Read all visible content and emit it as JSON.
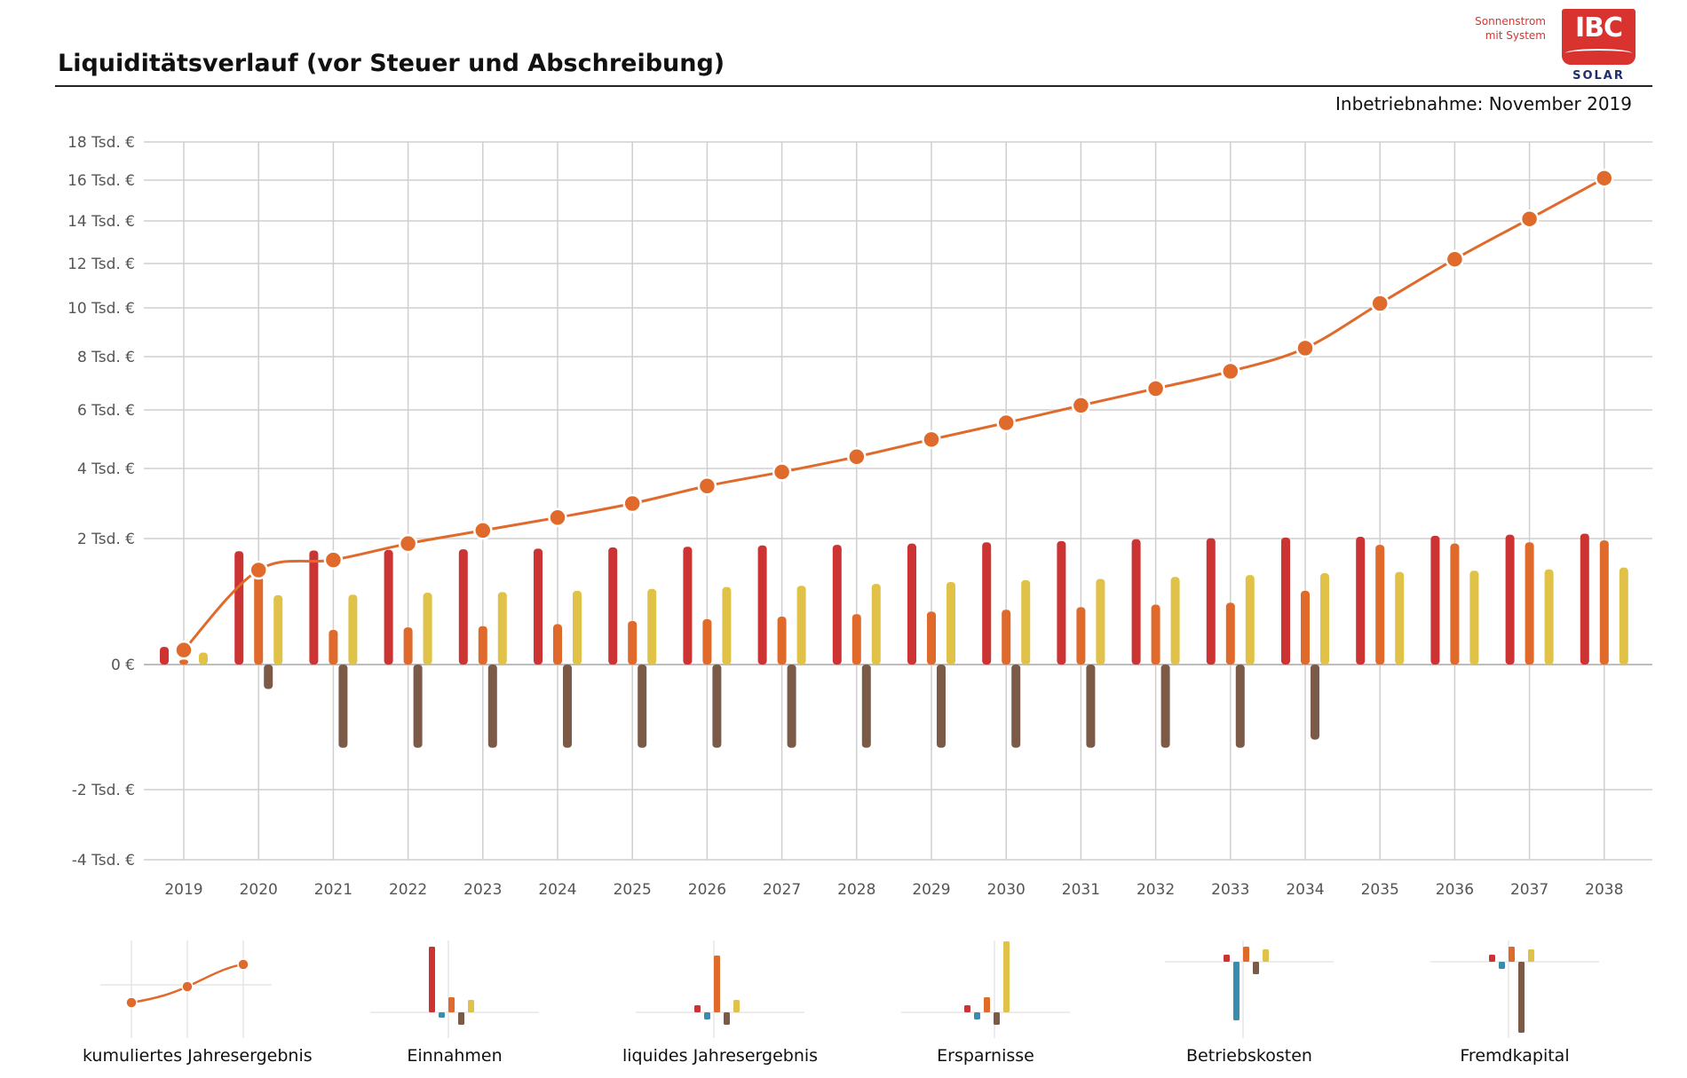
{
  "header": {
    "title": "Liquiditätsverlauf (vor Steuer und Abschreibung)",
    "commissioning": "Inbetriebnahme: November 2019"
  },
  "logo": {
    "tagline_line1": "Sonnenstrom",
    "tagline_line2": "mit System",
    "mark": "IBC",
    "sub": "SOLAR"
  },
  "colors": {
    "kumuliert": "#e06a2b",
    "einnahmen": "#cc3333",
    "liquide": "#e06a2b",
    "ersparnisse": "#e0c248",
    "fremdkapital": "#7b5a48",
    "betriebskosten": "#3a8bb0",
    "grid": "#cfcfcf"
  },
  "chart_data": {
    "type": "bar",
    "categories": [
      "2019",
      "2020",
      "2021",
      "2022",
      "2023",
      "2024",
      "2025",
      "2026",
      "2027",
      "2028",
      "2029",
      "2030",
      "2031",
      "2032",
      "2033",
      "2034",
      "2035",
      "2036",
      "2037",
      "2038"
    ],
    "y_ticks": [
      {
        "value": 18000,
        "label": "18 Tsd. €"
      },
      {
        "value": 16000,
        "label": "16 Tsd. €"
      },
      {
        "value": 14000,
        "label": "14 Tsd. €"
      },
      {
        "value": 12000,
        "label": "12 Tsd. €"
      },
      {
        "value": 10000,
        "label": "10 Tsd. €"
      },
      {
        "value": 8000,
        "label": "8 Tsd. €"
      },
      {
        "value": 6000,
        "label": "6 Tsd. €"
      },
      {
        "value": 4000,
        "label": "4 Tsd. €"
      },
      {
        "value": 2000,
        "label": "2 Tsd. €"
      },
      {
        "value": 0,
        "label": "0 €"
      },
      {
        "value": -2000,
        "label": "-2 Tsd. €"
      },
      {
        "value": -4000,
        "label": "-4 Tsd. €"
      }
    ],
    "ylim": [
      -4000,
      18000
    ],
    "y_scale": "compressed (non-linear)",
    "grid": true,
    "series": [
      {
        "key": "einnahmen",
        "type": "bar",
        "values": [
          280,
          1800,
          1810,
          1820,
          1830,
          1840,
          1860,
          1870,
          1890,
          1900,
          1920,
          1940,
          1960,
          1990,
          2010,
          2030,
          2050,
          2080,
          2110,
          2140
        ]
      },
      {
        "key": "liquide",
        "type": "bar",
        "values": [
          80,
          1400,
          550,
          590,
          610,
          640,
          690,
          720,
          760,
          800,
          840,
          870,
          910,
          950,
          980,
          1170,
          1900,
          1920,
          1940,
          1970
        ]
      },
      {
        "key": "ersparnisse",
        "type": "bar",
        "values": [
          190,
          1100,
          1110,
          1140,
          1150,
          1170,
          1200,
          1230,
          1250,
          1280,
          1310,
          1340,
          1360,
          1390,
          1420,
          1450,
          1470,
          1490,
          1510,
          1540
        ]
      },
      {
        "key": "fremdkapital",
        "type": "bar",
        "values": [
          0,
          -390,
          -1330,
          -1330,
          -1330,
          -1330,
          -1330,
          -1330,
          -1330,
          -1330,
          -1330,
          -1330,
          -1330,
          -1330,
          -1330,
          -1200,
          0,
          0,
          0,
          0
        ]
      },
      {
        "key": "kumuliert",
        "type": "line",
        "values": [
          230,
          1500,
          1660,
          1920,
          2230,
          2600,
          3000,
          3500,
          3900,
          4400,
          4990,
          5560,
          6170,
          6800,
          7450,
          8350,
          10200,
          12200,
          14100,
          16100
        ]
      }
    ]
  },
  "legend": [
    {
      "key": "kumuliert",
      "label": "kumuliertes Jahresergebnis"
    },
    {
      "key": "einnahmen",
      "label": "Einnahmen"
    },
    {
      "key": "liquide",
      "label": "liquides Jahresergebnis"
    },
    {
      "key": "ersparnisse",
      "label": "Ersparnisse"
    },
    {
      "key": "betriebskosten",
      "label": "Betriebskosten"
    },
    {
      "key": "fremdkapital",
      "label": "Fremdkapital"
    }
  ]
}
